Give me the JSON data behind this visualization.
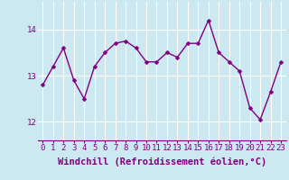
{
  "x": [
    0,
    1,
    2,
    3,
    4,
    5,
    6,
    7,
    8,
    9,
    10,
    11,
    12,
    13,
    14,
    15,
    16,
    17,
    18,
    19,
    20,
    21,
    22,
    23
  ],
  "y": [
    12.8,
    13.2,
    13.6,
    12.9,
    12.5,
    13.2,
    13.5,
    13.7,
    13.75,
    13.6,
    13.3,
    13.3,
    13.5,
    13.4,
    13.7,
    13.7,
    14.2,
    13.5,
    13.3,
    13.1,
    12.3,
    12.05,
    12.65,
    13.3
  ],
  "line_color": "#800080",
  "marker_color": "#800080",
  "bg_color": "#cce8f0",
  "grid_color": "#ffffff",
  "xlabel": "Windchill (Refroidissement éolien,°C)",
  "ylim": [
    11.6,
    14.6
  ],
  "xlim": [
    -0.5,
    23.5
  ],
  "yticks": [
    12,
    13,
    14
  ],
  "xticks": [
    0,
    1,
    2,
    3,
    4,
    5,
    6,
    7,
    8,
    9,
    10,
    11,
    12,
    13,
    14,
    15,
    16,
    17,
    18,
    19,
    20,
    21,
    22,
    23
  ],
  "tick_fontsize": 6.5,
  "xlabel_fontsize": 7.5,
  "line_width": 1.0,
  "marker_size": 2.5
}
